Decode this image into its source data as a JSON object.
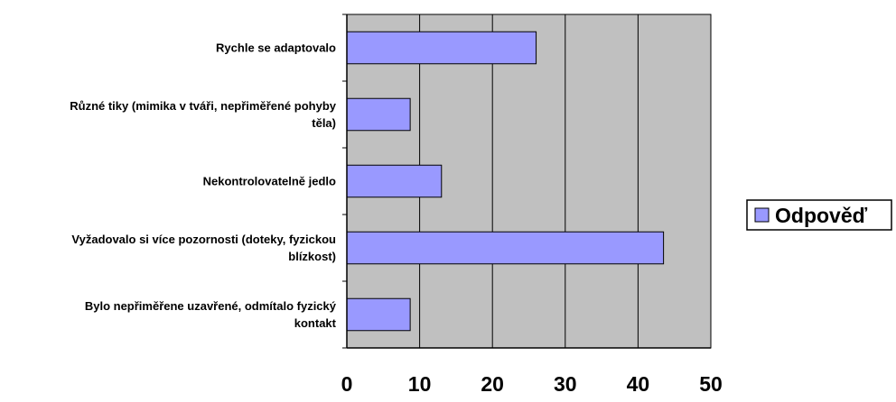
{
  "chart_data": {
    "type": "bar",
    "orientation": "horizontal",
    "categories": [
      [
        "Rychle se adaptovalo"
      ],
      [
        "Různé tiky (mimika v tváři, nepřiměřené pohyby",
        "těla)"
      ],
      [
        "Nekontrolovatelně jedlo"
      ],
      [
        "Vyžadovalo si více pozornosti (doteky, fyzickou",
        "blízkost)"
      ],
      [
        "Bylo nepřiměřene uzavřené, odmítalo fyzický",
        "kontakt"
      ]
    ],
    "series": [
      {
        "name": "Odpověď",
        "values": [
          26,
          8.7,
          13,
          43.5,
          8.7
        ],
        "color": "#9999ff"
      }
    ],
    "xlim": [
      0,
      50
    ],
    "xticks": [
      0,
      10,
      20,
      30,
      40,
      50
    ],
    "plot_background": "#c0c0c0",
    "grid": true,
    "legend_position": "right"
  }
}
